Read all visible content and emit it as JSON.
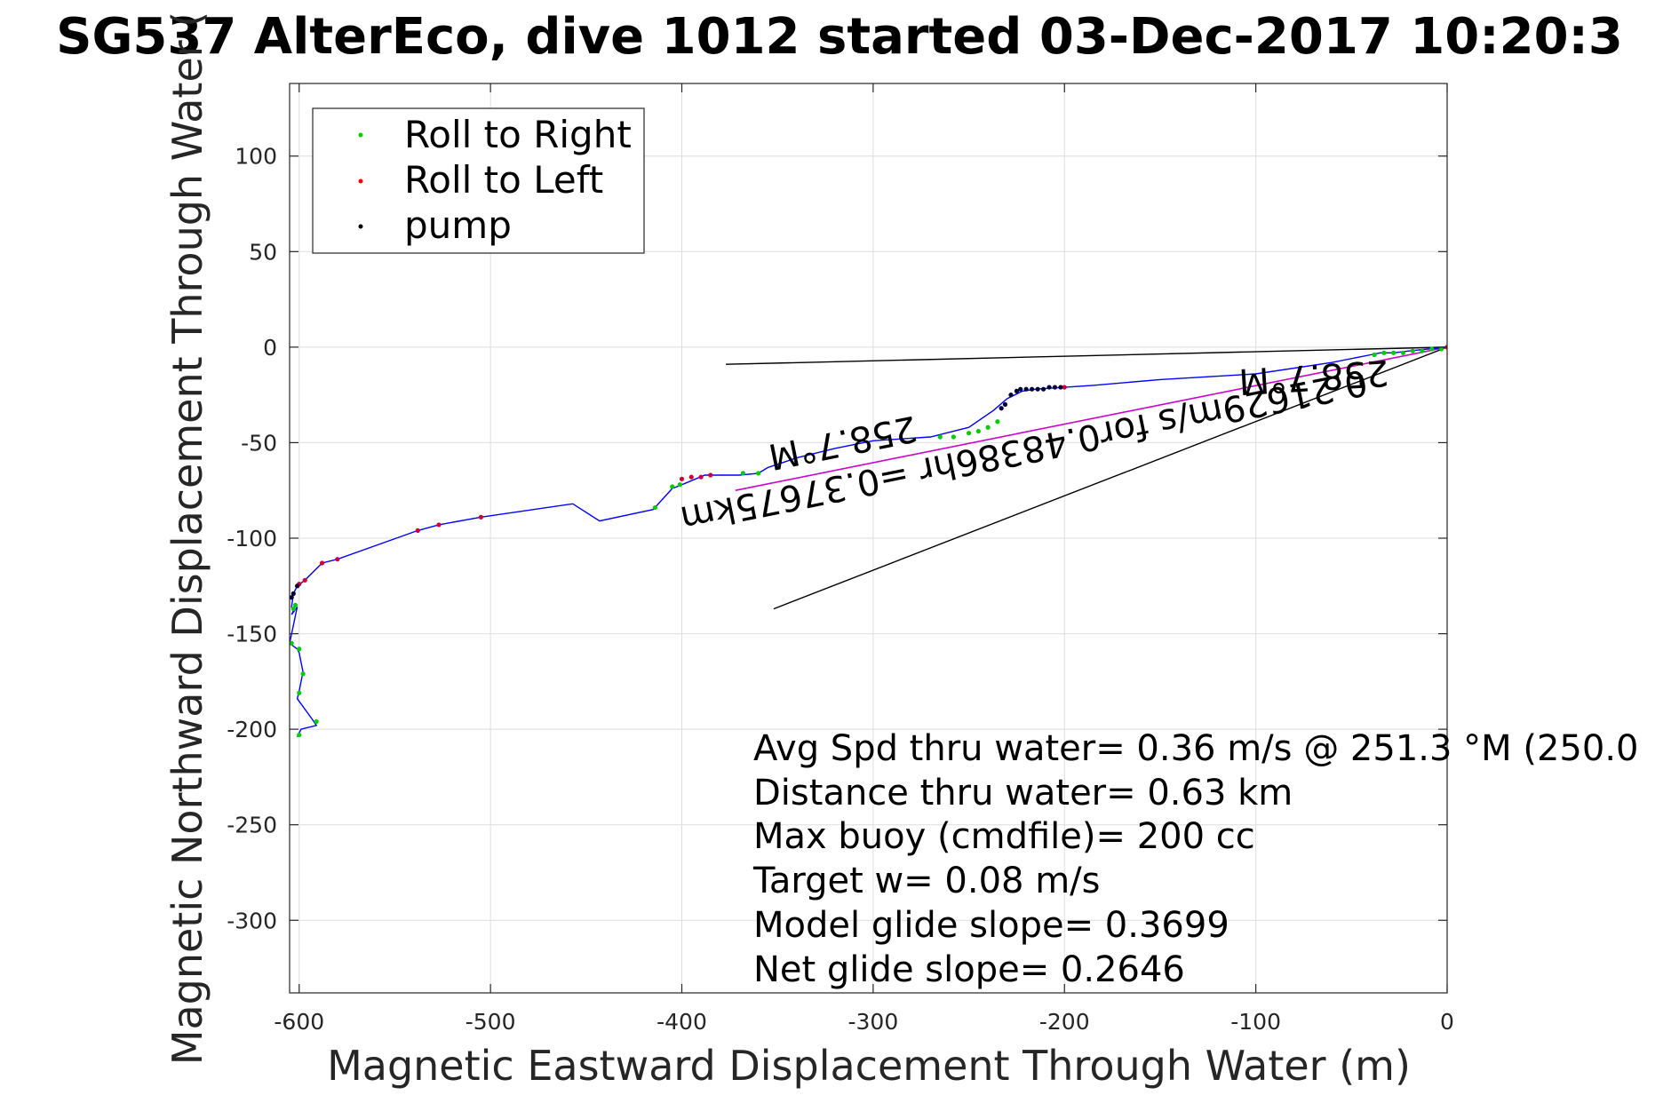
{
  "chart_data": {
    "type": "scatter",
    "title": "SG537 AlterEco, dive 1012 started 03-Dec-2017 10:20:3",
    "xlabel": "Magnetic Eastward Displacement Through Water (m)",
    "ylabel": "Magnetic Northward Displacement Through Water (",
    "xlim": [
      -605,
      0
    ],
    "ylim": [
      -338,
      138
    ],
    "grid": true,
    "xticks": [
      -600,
      -500,
      -400,
      -300,
      -200,
      -100,
      0
    ],
    "yticks": [
      100,
      50,
      0,
      -50,
      -100,
      -150,
      -200,
      -250,
      -300
    ],
    "legend": {
      "placement": "top-left",
      "entries": [
        {
          "label": "Roll to Right",
          "color": "#00cc00"
        },
        {
          "label": "Roll to Left",
          "color": "#ff0000"
        },
        {
          "label": "pump",
          "color": "#000000"
        }
      ]
    },
    "colors": {
      "track": "#0000ff",
      "roll_right": "#00cc00",
      "roll_left": "#cc0033",
      "pump": "#000033",
      "current_vector": "#cc00cc",
      "reference_lines": "#000000"
    },
    "track": {
      "x": [
        0,
        -10,
        -20,
        -28,
        -35,
        -40,
        -60,
        -100,
        -150,
        -185,
        -200,
        -215,
        -222,
        -230,
        -237,
        -250,
        -270,
        -300,
        -320,
        -340,
        -355,
        -360,
        -370,
        -388,
        -400,
        -405,
        -415,
        -443,
        -457,
        -505,
        -527,
        -538,
        -580,
        -588,
        -597,
        -601,
        -603,
        -604,
        -603,
        -604,
        -601,
        -605,
        -601,
        -600,
        -598,
        -600,
        -601,
        -593,
        -591,
        -599,
        -601
      ],
      "y": [
        0,
        -1,
        -2,
        -3,
        -3,
        -4,
        -8,
        -14,
        -17,
        -20,
        -21,
        -22,
        -23,
        -27,
        -33,
        -42,
        -47,
        -49,
        -53,
        -58,
        -63,
        -66,
        -67,
        -67,
        -72,
        -74,
        -85,
        -91,
        -82,
        -89,
        -93,
        -96,
        -111,
        -113,
        -122,
        -125,
        -129,
        -136,
        -138,
        -140,
        -136,
        -155,
        -158,
        -160,
        -170,
        -180,
        -184,
        -195,
        -198,
        -200,
        -204
      ]
    },
    "series": [
      {
        "name": "Roll to Right",
        "x": [
          -3,
          -8,
          -13,
          -18,
          -23,
          -28,
          -33,
          -38,
          -235,
          -240,
          -245,
          -250,
          -258,
          -265,
          -360,
          -368,
          -401,
          -405,
          -414,
          -602,
          -603,
          -604,
          -600,
          -598,
          -600,
          -591,
          -600
        ],
        "y": [
          -1,
          -1,
          -2,
          -2,
          -3,
          -3,
          -3,
          -4,
          -39,
          -42,
          -44,
          -45,
          -47,
          -47,
          -66,
          -66,
          -72,
          -73,
          -84,
          -135,
          -137,
          -155,
          -158,
          -171,
          -181,
          -196,
          -203
        ]
      },
      {
        "name": "Roll to Left",
        "x": [
          0,
          -200,
          -385,
          -390,
          -395,
          -400,
          -505,
          -527,
          -538,
          -580,
          -588,
          -597,
          -600
        ],
        "y": [
          0,
          -21,
          -67,
          -68,
          -68,
          -69,
          -89,
          -93,
          -96,
          -111,
          -113,
          -122,
          -124
        ]
      },
      {
        "name": "pump",
        "x": [
          -202,
          -205,
          -208,
          -211,
          -214,
          -217,
          -220,
          -223,
          -225,
          -228,
          -231,
          -233,
          -601,
          -603,
          -604
        ],
        "y": [
          -21,
          -21,
          -21,
          -22,
          -22,
          -22,
          -22,
          -22,
          -23,
          -25,
          -30,
          -32,
          -125,
          -129,
          -131
        ]
      }
    ],
    "reference_lines": [
      {
        "x": [
          0,
          -377
        ],
        "y": [
          0,
          -9
        ]
      },
      {
        "x": [
          0,
          -352
        ],
        "y": [
          0,
          -137
        ]
      }
    ],
    "current_vector": {
      "x": [
        0,
        -372
      ],
      "y": [
        0,
        -75
      ]
    },
    "annotations": {
      "near_origin": "258.7°M",
      "vector": "0.21629m/s for0.48386hr =0.37675km",
      "mid": "258.7°M"
    },
    "stats": [
      "Avg Spd thru water=  0.36 m/s @ 251.3 °M (250.0",
      "Distance thru water=  0.63 km",
      "Max buoy (cmdfile)= 200 cc",
      "Target w= 0.08 m/s",
      "Model glide slope= 0.3699",
      "Net glide slope= 0.2646"
    ]
  }
}
